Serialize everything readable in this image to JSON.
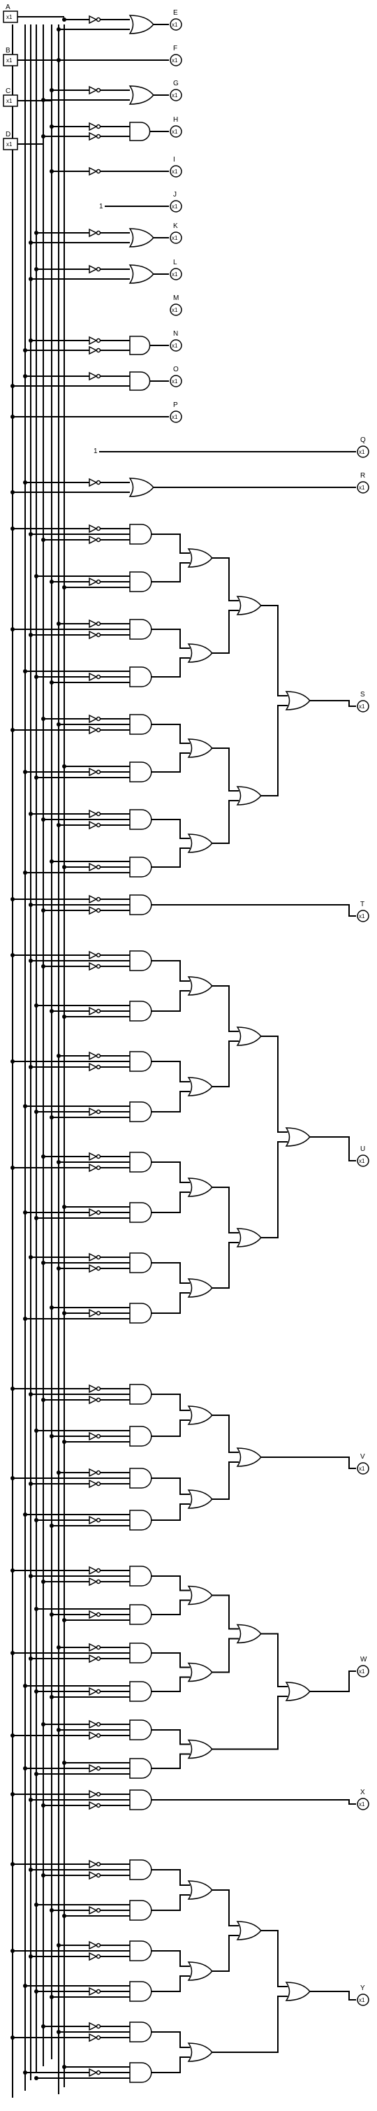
{
  "inputs": [
    {
      "label": "A",
      "value": "x1"
    },
    {
      "label": "B",
      "value": "x1"
    },
    {
      "label": "C",
      "value": "x1"
    },
    {
      "label": "D",
      "value": "x1"
    }
  ],
  "outputs": [
    {
      "label": "E",
      "value": "x1"
    },
    {
      "label": "F",
      "value": "x1"
    },
    {
      "label": "G",
      "value": "x1"
    },
    {
      "label": "H",
      "value": "x1"
    },
    {
      "label": "I",
      "value": "x1"
    },
    {
      "label": "J",
      "value": "x1"
    },
    {
      "label": "K",
      "value": "x1"
    },
    {
      "label": "L",
      "value": "x1"
    },
    {
      "label": "M",
      "value": "x1"
    },
    {
      "label": "N",
      "value": "x1"
    },
    {
      "label": "O",
      "value": "x1"
    },
    {
      "label": "P",
      "value": "x1"
    },
    {
      "label": "Q",
      "value": "x1"
    },
    {
      "label": "R",
      "value": "x1"
    },
    {
      "label": "S",
      "value": "x1"
    },
    {
      "label": "T",
      "value": "x1"
    },
    {
      "label": "U",
      "value": "x1"
    },
    {
      "label": "V",
      "value": "x1"
    },
    {
      "label": "W",
      "value": "x1"
    },
    {
      "label": "X",
      "value": "x1"
    },
    {
      "label": "Y",
      "value": "x1"
    }
  ],
  "constants": [
    "1",
    "1"
  ]
}
